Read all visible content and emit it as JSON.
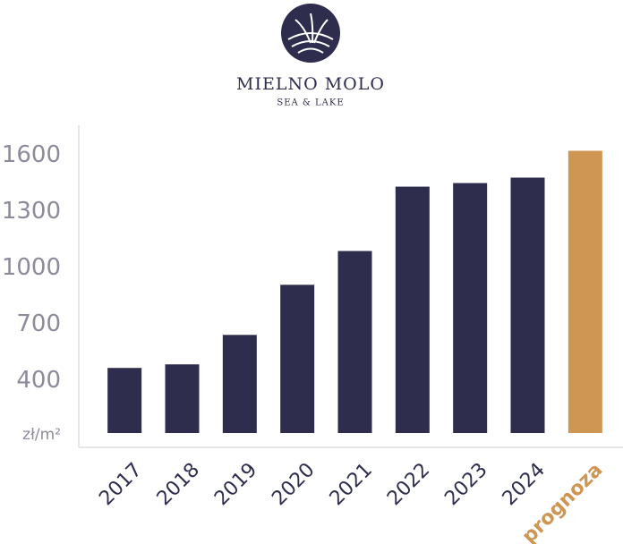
{
  "chart_data": {
    "type": "bar",
    "title": "MIELNO MOLO",
    "subtitle": "SEA & LAKE",
    "y_label": "zł/m²",
    "categories": [
      "2017",
      "2018",
      "2019",
      "2020",
      "2021",
      "2022",
      "2023",
      "2024",
      "prognoza"
    ],
    "values": [
      467,
      486,
      643,
      910,
      1090,
      1433,
      1452,
      1481,
      1624
    ],
    "colors": [
      "#2e2d4d",
      "#2e2d4d",
      "#2e2d4d",
      "#2e2d4d",
      "#2e2d4d",
      "#2e2d4d",
      "#2e2d4d",
      "#2e2d4d",
      "#cf9552"
    ],
    "ylim": [
      120,
      1760
    ],
    "yticks": [
      400,
      700,
      1000,
      1300,
      1600
    ],
    "grid": false
  }
}
